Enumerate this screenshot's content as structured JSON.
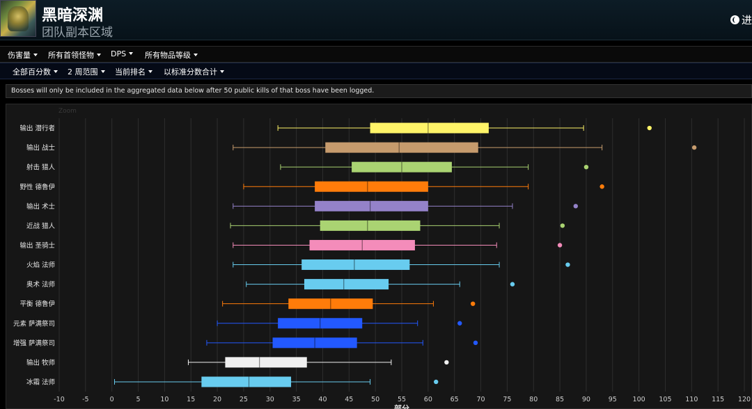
{
  "header": {
    "title": "黑暗深渊",
    "subtitle": "团队副本区域",
    "nav_link": "进"
  },
  "menus": {
    "row1": [
      {
        "label": "伤害量"
      },
      {
        "label": "所有首领怪物"
      },
      {
        "label": "DPS"
      },
      {
        "label": "所有物品等级"
      }
    ],
    "row2": [
      {
        "label": "全部百分数"
      },
      {
        "label": "2 周范围"
      },
      {
        "label": "当前排名"
      },
      {
        "label": "以标准分数合计"
      }
    ]
  },
  "notice": "Bosses will only be included in the aggregated data below after 50 public kills of that boss have been logged.",
  "chart_data": {
    "type": "boxplot",
    "orientation": "horizontal",
    "xlabel": "部分",
    "corner_label": "Zoom",
    "xlim": [
      -10,
      120
    ],
    "xticks": [
      -10,
      -5,
      0,
      5,
      10,
      15,
      20,
      25,
      30,
      35,
      40,
      45,
      50,
      55,
      60,
      65,
      70,
      75,
      80,
      85,
      90,
      95,
      100,
      105,
      110,
      115,
      120
    ],
    "grid": true,
    "series": [
      {
        "name": "输出 潜行者",
        "color": "#fff468",
        "min": 31.5,
        "q1": 49,
        "median": 60,
        "q3": 71.5,
        "max": 89.5,
        "outlier": 102
      },
      {
        "name": "输出 战士",
        "color": "#c69b6d",
        "min": 23,
        "q1": 40.5,
        "median": 54.5,
        "q3": 69.5,
        "max": 93,
        "outlier": 110.5
      },
      {
        "name": "射击 猎人",
        "color": "#aad372",
        "min": 32,
        "q1": 45.5,
        "median": 55,
        "q3": 64.5,
        "max": 79,
        "outlier": 90
      },
      {
        "name": "野性 德鲁伊",
        "color": "#ff7c0a",
        "min": 25,
        "q1": 38.5,
        "median": 48.5,
        "q3": 60,
        "max": 79,
        "outlier": 93
      },
      {
        "name": "输出 术士",
        "color": "#9482c9",
        "min": 23,
        "q1": 38.5,
        "median": 49,
        "q3": 60,
        "max": 76,
        "outlier": 88
      },
      {
        "name": "近战 猎人",
        "color": "#aad372",
        "min": 22.5,
        "q1": 39.5,
        "median": 48.5,
        "q3": 58.5,
        "max": 73.5,
        "outlier": 85.5
      },
      {
        "name": "输出 圣骑士",
        "color": "#f48cba",
        "min": 23,
        "q1": 37.5,
        "median": 47.5,
        "q3": 57.5,
        "max": 73,
        "outlier": 85
      },
      {
        "name": "火焰 法师",
        "color": "#68ccef",
        "min": 23,
        "q1": 36,
        "median": 46,
        "q3": 56.5,
        "max": 73.5,
        "outlier": 86.5
      },
      {
        "name": "奥术 法师",
        "color": "#68ccef",
        "min": 25.5,
        "q1": 36.5,
        "median": 44,
        "q3": 52.5,
        "max": 66,
        "outlier": 76
      },
      {
        "name": "平衡 德鲁伊",
        "color": "#ff7c0a",
        "min": 21,
        "q1": 33.5,
        "median": 41.5,
        "q3": 49.5,
        "max": 61,
        "outlier": 68.5
      },
      {
        "name": "元素 萨满祭司",
        "color": "#2359ff",
        "min": 20,
        "q1": 31.5,
        "median": 39.5,
        "q3": 47.5,
        "max": 58,
        "outlier": 66
      },
      {
        "name": "增强 萨满祭司",
        "color": "#2359ff",
        "min": 18,
        "q1": 30.5,
        "median": 38.5,
        "q3": 46.5,
        "max": 59,
        "outlier": 69
      },
      {
        "name": "输出 牧师",
        "color": "#f0f0f0",
        "min": 14.5,
        "q1": 21.5,
        "median": 28,
        "q3": 37,
        "max": 53,
        "outlier": 63.5
      },
      {
        "name": "冰霜 法师",
        "color": "#68ccef",
        "min": 0.5,
        "q1": 17,
        "median": 26,
        "q3": 34,
        "max": 49,
        "outlier": 61.5
      }
    ]
  }
}
